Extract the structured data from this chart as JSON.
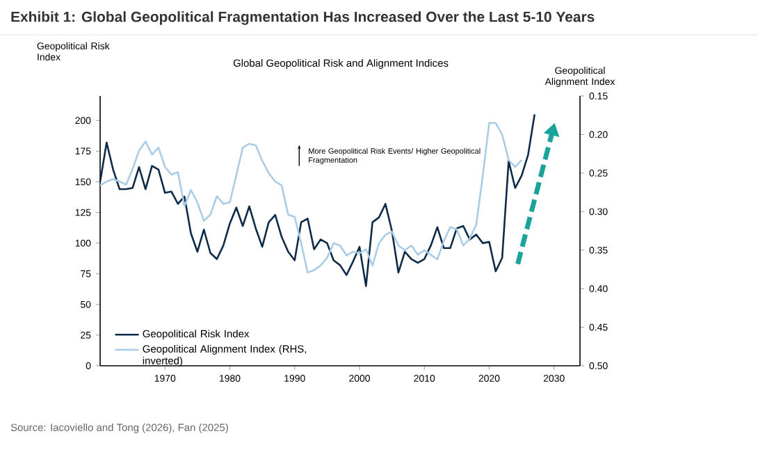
{
  "chart_data": {
    "type": "line",
    "title": "Exhibit 1: Global Geopolitical Fragmentation Has Increased Over the Last 5-10 Years",
    "subtitle": "Global Geopolitical Risk and Alignment Indices",
    "ylabel": "Geopolitical Risk Index",
    "y2label": "Geopolitical Alignment Index",
    "annotations": [
      "More Geopolitical Risk Events/ Higher Geopolitical Fragmentation",
      "Source: Iacoviello and Tong (2026), Fan (2025)"
    ],
    "series": [
      {
        "name": "Geopolitical Risk Index",
        "color": "#0d2b48",
        "x": [
          1960,
          1961,
          1962,
          1963,
          1964,
          1965,
          1966,
          1967,
          1968,
          1969,
          1970,
          1971,
          1972,
          1973,
          1974,
          1975,
          1976,
          1977,
          1978,
          1979,
          1980,
          1981,
          1982,
          1983,
          1984,
          1985,
          1986,
          1987,
          1988,
          1989,
          1990,
          1991,
          1992,
          1993,
          1994,
          1995,
          1996,
          1997,
          1998,
          1999,
          2000,
          2001,
          2002,
          2003,
          2004,
          2005,
          2006,
          2007,
          2008,
          2009,
          2010,
          2011,
          2012,
          2013,
          2014,
          2015,
          2016,
          2017,
          2018,
          2019,
          2020,
          2021,
          2022,
          2023,
          2024,
          2025,
          2026,
          2027
        ],
        "values": [
          150,
          182,
          160,
          144,
          144,
          145,
          162,
          144,
          163,
          160,
          141,
          142,
          132,
          138,
          108,
          93,
          111,
          92,
          87,
          98,
          116,
          129,
          114,
          130,
          112,
          97,
          117,
          123,
          105,
          93,
          86,
          117,
          120,
          95,
          103,
          100,
          86,
          82,
          74,
          85,
          97,
          65,
          117,
          121,
          132,
          110,
          76,
          93,
          87,
          84,
          87,
          98,
          113,
          96,
          96,
          112,
          114,
          103,
          107,
          100,
          101,
          77,
          88,
          167,
          145,
          155,
          172,
          205
        ]
      },
      {
        "name": "Geopolitical Alignment Index (RHS, inverted)",
        "color": "#a9cde6",
        "axis": "y2",
        "x": [
          1960,
          1961,
          1962,
          1963,
          1964,
          1965,
          1966,
          1967,
          1968,
          1969,
          1970,
          1971,
          1972,
          1973,
          1974,
          1975,
          1976,
          1977,
          1978,
          1979,
          1980,
          1981,
          1982,
          1983,
          1984,
          1985,
          1986,
          1987,
          1988,
          1989,
          1990,
          1991,
          1992,
          1993,
          1994,
          1995,
          1996,
          1997,
          1998,
          1999,
          2000,
          2001,
          2002,
          2003,
          2004,
          2005,
          2006,
          2007,
          2008,
          2009,
          2010,
          2011,
          2012,
          2013,
          2014,
          2015,
          2016,
          2017,
          2018,
          2019,
          2020,
          2021,
          2022,
          2023,
          2024,
          2025
        ],
        "values": [
          0.266,
          0.261,
          0.258,
          0.261,
          0.265,
          0.245,
          0.221,
          0.209,
          0.226,
          0.217,
          0.242,
          0.252,
          0.249,
          0.293,
          0.272,
          0.288,
          0.312,
          0.304,
          0.28,
          0.29,
          0.288,
          0.253,
          0.217,
          0.212,
          0.214,
          0.234,
          0.25,
          0.261,
          0.266,
          0.304,
          0.307,
          0.341,
          0.379,
          0.376,
          0.37,
          0.36,
          0.341,
          0.344,
          0.357,
          0.352,
          0.354,
          0.349,
          0.37,
          0.341,
          0.33,
          0.326,
          0.344,
          0.35,
          0.344,
          0.356,
          0.35,
          0.356,
          0.362,
          0.338,
          0.32,
          0.323,
          0.344,
          0.335,
          0.317,
          0.254,
          0.185,
          0.185,
          0.2,
          0.233,
          0.242,
          0.233
        ]
      }
    ],
    "xlim": [
      1960,
      2034
    ],
    "xticks": [
      1970,
      1980,
      1990,
      2000,
      2010,
      2020,
      2030
    ],
    "ylim": [
      0,
      220
    ],
    "yticks": [
      0,
      25,
      50,
      75,
      100,
      125,
      150,
      175,
      200
    ],
    "y2lim": [
      0.5,
      0.15
    ],
    "y2ticks": [
      {
        "value": 0.15,
        "label": "0.15"
      },
      {
        "value": 0.2,
        "label": "0.20"
      },
      {
        "value": 0.25,
        "label": "0.25"
      },
      {
        "value": 0.3,
        "label": "0.30"
      },
      {
        "value": 0.35,
        "label": "0.35"
      },
      {
        "value": 0.4,
        "label": "0.40"
      },
      {
        "value": 0.45,
        "label": "0.45"
      },
      {
        "value": 0.5,
        "label": "0.50"
      }
    ],
    "legend": "bottom left",
    "line_style": "solid",
    "marker": "none"
  }
}
